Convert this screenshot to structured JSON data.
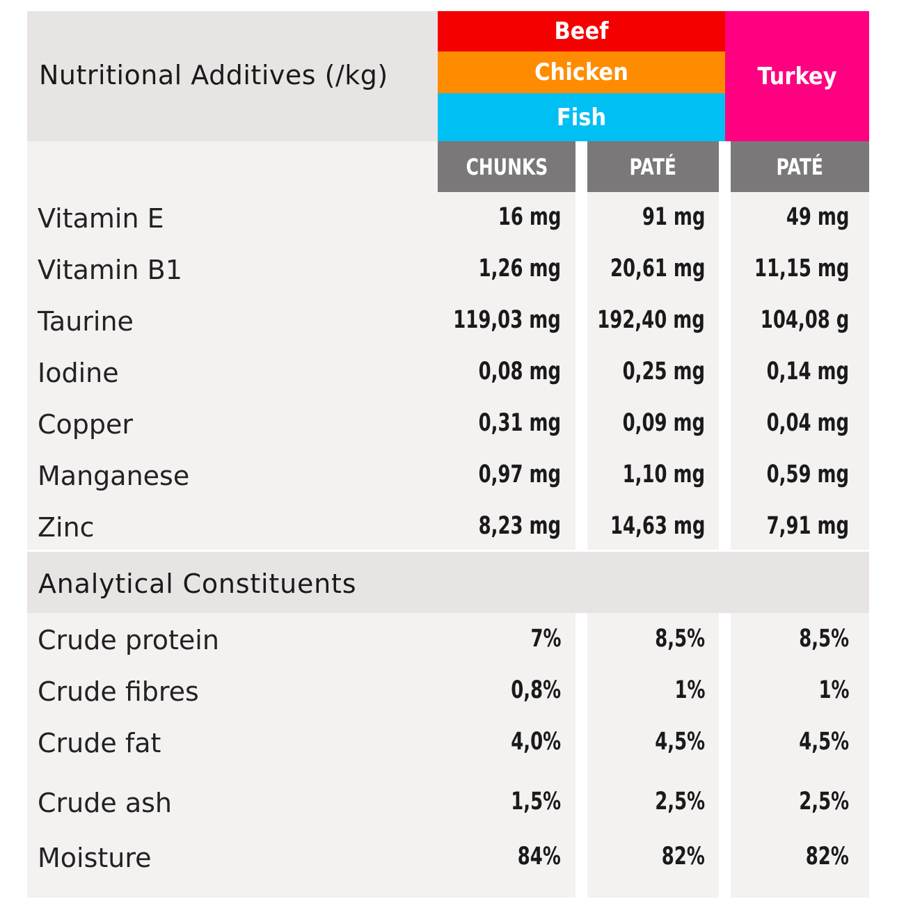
{
  "header": {
    "title": "Nutritional Additives (/kg)",
    "flavours": {
      "beef": "Beef",
      "chicken": "Chicken",
      "fish": "Fish",
      "turkey": "Turkey"
    },
    "flavour_colors": {
      "beef": "#f50000",
      "chicken": "#ff8c00",
      "fish": "#00bff2",
      "turkey": "#ff0080"
    },
    "columns": [
      "CHUNKS",
      "PATÉ",
      "PATÉ"
    ]
  },
  "additives": [
    {
      "label": "Vitamin E",
      "values": [
        "16 mg",
        "91 mg",
        "49 mg"
      ]
    },
    {
      "label": "Vitamin B1",
      "values": [
        "1,26 mg",
        "20,61 mg",
        "11,15 mg"
      ]
    },
    {
      "label": "Taurine",
      "values": [
        "119,03 mg",
        "192,40 mg",
        "104,08 g"
      ]
    },
    {
      "label": "Iodine",
      "values": [
        "0,08 mg",
        "0,25 mg",
        "0,14 mg"
      ]
    },
    {
      "label": "Copper",
      "values": [
        "0,31 mg",
        "0,09 mg",
        "0,04 mg"
      ]
    },
    {
      "label": "Manganese",
      "values": [
        "0,97 mg",
        "1,10 mg",
        "0,59 mg"
      ]
    },
    {
      "label": "Zinc",
      "values": [
        "8,23 mg",
        "14,63 mg",
        "7,91 mg"
      ]
    }
  ],
  "analytical": {
    "title": "Analytical Constituents",
    "rows": [
      {
        "label": "Crude protein",
        "values": [
          "7%",
          "8,5%",
          "8,5%"
        ]
      },
      {
        "label": "Crude fibres",
        "values": [
          "0,8%",
          "1%",
          "1%"
        ]
      },
      {
        "label": "Crude fat",
        "values": [
          "4,0%",
          "4,5%",
          "4,5%"
        ]
      },
      {
        "label": "Crude ash",
        "values": [
          "1,5%",
          "2,5%",
          "2,5%"
        ]
      },
      {
        "label": "Moisture",
        "values": [
          "84%",
          "82%",
          "82%"
        ]
      }
    ]
  }
}
